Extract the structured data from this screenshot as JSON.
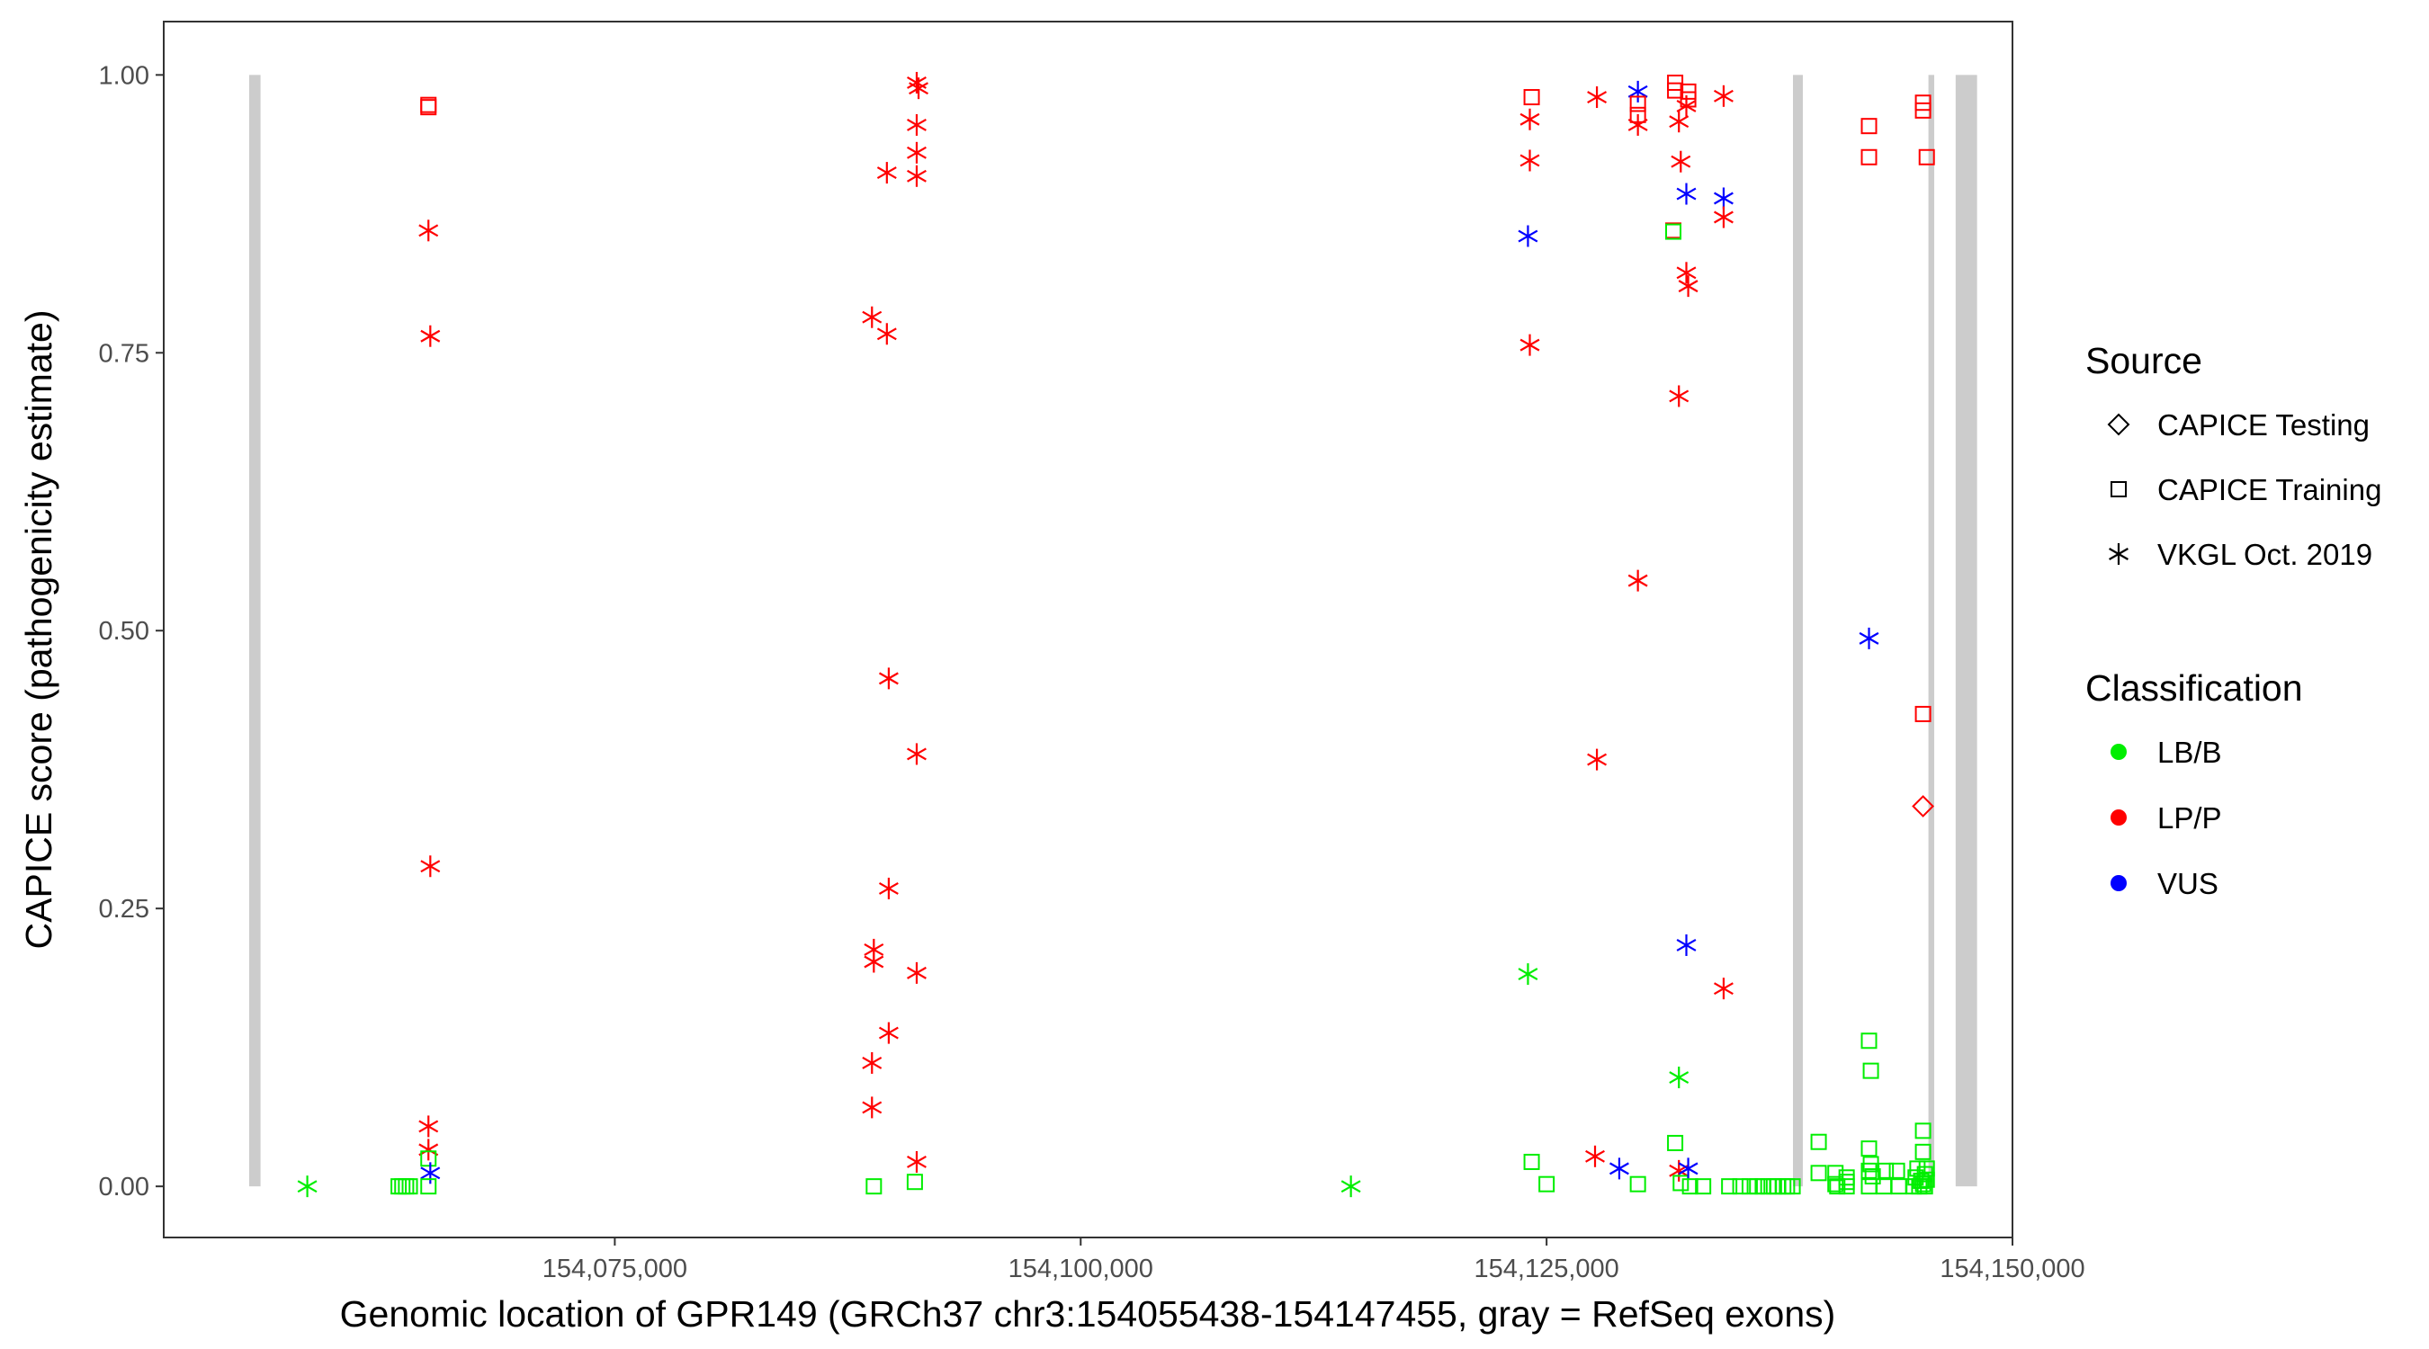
{
  "chart_data": {
    "type": "scatter",
    "xlabel": "Genomic location of GPR149 (GRCh37 chr3:154055438-154147455, gray = RefSeq exons)",
    "ylabel": "CAPICE score (pathogenicity estimate)",
    "xlim": [
      50796,
      149999
    ],
    "ylim": [
      -0.046,
      1.048
    ],
    "xticks": [
      75000,
      100000,
      125000,
      150000
    ],
    "xtick_labels": [
      "154,075,000",
      "154,100,000",
      "154,125,000",
      "154,150,000"
    ],
    "yticks": [
      0,
      0.25,
      0.5,
      0.75,
      1.0
    ],
    "ytick_labels": [
      "0.00",
      "0.25",
      "0.50",
      "0.75",
      "1.00"
    ],
    "x_offset": 154000000,
    "exons": [
      [
        55380,
        55990
      ],
      [
        138220,
        138750
      ],
      [
        145490,
        145800
      ],
      [
        146950,
        148100
      ]
    ],
    "colors": {
      "LB/B": "#00ee00",
      "LP/P": "#ff0000",
      "VUS": "#0000ff",
      "exon": "#cccccc"
    },
    "legend": {
      "source_title": "Source",
      "source_items": [
        {
          "label": "CAPICE Testing",
          "shape": "diamond"
        },
        {
          "label": "CAPICE Training",
          "shape": "square"
        },
        {
          "label": "VKGL Oct. 2019",
          "shape": "asterisk"
        }
      ],
      "class_title": "Classification",
      "class_items": [
        {
          "label": "LB/B",
          "color": "#00ee00"
        },
        {
          "label": "LP/P",
          "color": "#ff0000"
        },
        {
          "label": "VUS",
          "color": "#0000ff"
        }
      ]
    },
    "points": [
      [
        58500,
        0.0,
        "VKGL Oct. 2019",
        "LB/B"
      ],
      [
        63400,
        0.0,
        "CAPICE Training",
        "LB/B"
      ],
      [
        63600,
        0.0,
        "CAPICE Training",
        "LB/B"
      ],
      [
        63800,
        0.0,
        "CAPICE Training",
        "LB/B"
      ],
      [
        64000,
        0.0,
        "CAPICE Training",
        "LB/B"
      ],
      [
        65000,
        0.973,
        "CAPICE Training",
        "LP/P"
      ],
      [
        65000,
        0.971,
        "CAPICE Training",
        "LP/P"
      ],
      [
        65000,
        0.86,
        "VKGL Oct. 2019",
        "LP/P"
      ],
      [
        65100,
        0.765,
        "VKGL Oct. 2019",
        "LP/P"
      ],
      [
        65100,
        0.288,
        "VKGL Oct. 2019",
        "LP/P"
      ],
      [
        65000,
        0.054,
        "VKGL Oct. 2019",
        "LP/P"
      ],
      [
        65000,
        0.033,
        "VKGL Oct. 2019",
        "LP/P"
      ],
      [
        65000,
        0.025,
        "CAPICE Training",
        "LB/B"
      ],
      [
        65100,
        0.012,
        "VKGL Oct. 2019",
        "VUS"
      ],
      [
        65000,
        0.0,
        "CAPICE Training",
        "LB/B"
      ],
      [
        88900,
        0.0,
        "CAPICE Training",
        "LB/B"
      ],
      [
        91100,
        0.004,
        "CAPICE Training",
        "LB/B"
      ],
      [
        91200,
        0.993,
        "VKGL Oct. 2019",
        "LP/P"
      ],
      [
        91300,
        0.988,
        "VKGL Oct. 2019",
        "LP/P"
      ],
      [
        91200,
        0.955,
        "VKGL Oct. 2019",
        "LP/P"
      ],
      [
        91200,
        0.93,
        "VKGL Oct. 2019",
        "LP/P"
      ],
      [
        91200,
        0.909,
        "VKGL Oct. 2019",
        "LP/P"
      ],
      [
        89600,
        0.912,
        "VKGL Oct. 2019",
        "LP/P"
      ],
      [
        88800,
        0.782,
        "VKGL Oct. 2019",
        "LP/P"
      ],
      [
        89600,
        0.767,
        "VKGL Oct. 2019",
        "LP/P"
      ],
      [
        89700,
        0.457,
        "VKGL Oct. 2019",
        "LP/P"
      ],
      [
        91200,
        0.389,
        "VKGL Oct. 2019",
        "LP/P"
      ],
      [
        89700,
        0.268,
        "VKGL Oct. 2019",
        "LP/P"
      ],
      [
        88900,
        0.213,
        "VKGL Oct. 2019",
        "LP/P"
      ],
      [
        88900,
        0.202,
        "VKGL Oct. 2019",
        "LP/P"
      ],
      [
        91200,
        0.192,
        "VKGL Oct. 2019",
        "LP/P"
      ],
      [
        89700,
        0.138,
        "VKGL Oct. 2019",
        "LP/P"
      ],
      [
        88800,
        0.111,
        "VKGL Oct. 2019",
        "LP/P"
      ],
      [
        88800,
        0.071,
        "VKGL Oct. 2019",
        "LP/P"
      ],
      [
        91200,
        0.022,
        "VKGL Oct. 2019",
        "LP/P"
      ],
      [
        114500,
        0.0,
        "VKGL Oct. 2019",
        "LB/B"
      ],
      [
        124200,
        0.98,
        "CAPICE Training",
        "LP/P"
      ],
      [
        124100,
        0.96,
        "VKGL Oct. 2019",
        "LP/P"
      ],
      [
        124100,
        0.923,
        "VKGL Oct. 2019",
        "LP/P"
      ],
      [
        124000,
        0.855,
        "VKGL Oct. 2019",
        "VUS"
      ],
      [
        124100,
        0.757,
        "VKGL Oct. 2019",
        "LP/P"
      ],
      [
        124000,
        0.191,
        "VKGL Oct. 2019",
        "LB/B"
      ],
      [
        124200,
        0.022,
        "CAPICE Training",
        "LB/B"
      ],
      [
        125000,
        0.002,
        "CAPICE Training",
        "LB/B"
      ],
      [
        127700,
        0.98,
        "VKGL Oct. 2019",
        "LP/P"
      ],
      [
        127700,
        0.384,
        "VKGL Oct. 2019",
        "LP/P"
      ],
      [
        127600,
        0.027,
        "VKGL Oct. 2019",
        "LP/P"
      ],
      [
        128900,
        0.016,
        "VKGL Oct. 2019",
        "VUS"
      ],
      [
        129900,
        0.985,
        "VKGL Oct. 2019",
        "VUS"
      ],
      [
        129900,
        0.974,
        "CAPICE Training",
        "LP/P"
      ],
      [
        129900,
        0.964,
        "CAPICE Training",
        "LP/P"
      ],
      [
        129900,
        0.955,
        "VKGL Oct. 2019",
        "LP/P"
      ],
      [
        129900,
        0.545,
        "VKGL Oct. 2019",
        "LP/P"
      ],
      [
        129900,
        0.002,
        "CAPICE Training",
        "LB/B"
      ],
      [
        131900,
        0.993,
        "CAPICE Training",
        "LP/P"
      ],
      [
        131900,
        0.986,
        "CAPICE Training",
        "LP/P"
      ],
      [
        131800,
        0.86,
        "CAPICE Training",
        "LP/P"
      ],
      [
        131800,
        0.859,
        "CAPICE Training",
        "LB/B"
      ],
      [
        131900,
        0.039,
        "CAPICE Training",
        "LB/B"
      ],
      [
        132100,
        0.958,
        "VKGL Oct. 2019",
        "LP/P"
      ],
      [
        132200,
        0.922,
        "VKGL Oct. 2019",
        "LP/P"
      ],
      [
        132100,
        0.711,
        "VKGL Oct. 2019",
        "LP/P"
      ],
      [
        132100,
        0.098,
        "VKGL Oct. 2019",
        "LB/B"
      ],
      [
        132100,
        0.014,
        "VKGL Oct. 2019",
        "LP/P"
      ],
      [
        132200,
        0.003,
        "CAPICE Training",
        "LB/B"
      ],
      [
        132600,
        0.985,
        "CAPICE Training",
        "LP/P"
      ],
      [
        132600,
        0.978,
        "CAPICE Training",
        "LP/P"
      ],
      [
        132500,
        0.972,
        "VKGL Oct. 2019",
        "LP/P"
      ],
      [
        132500,
        0.893,
        "VKGL Oct. 2019",
        "VUS"
      ],
      [
        132500,
        0.822,
        "VKGL Oct. 2019",
        "LP/P"
      ],
      [
        132600,
        0.81,
        "VKGL Oct. 2019",
        "LP/P"
      ],
      [
        132500,
        0.217,
        "VKGL Oct. 2019",
        "VUS"
      ],
      [
        132600,
        0.016,
        "VKGL Oct. 2019",
        "VUS"
      ],
      [
        132700,
        0.0,
        "CAPICE Training",
        "LB/B"
      ],
      [
        133400,
        0.0,
        "CAPICE Training",
        "LB/B"
      ],
      [
        134500,
        0.981,
        "VKGL Oct. 2019",
        "LP/P"
      ],
      [
        134500,
        0.889,
        "VKGL Oct. 2019",
        "VUS"
      ],
      [
        134500,
        0.872,
        "VKGL Oct. 2019",
        "LP/P"
      ],
      [
        134500,
        0.178,
        "VKGL Oct. 2019",
        "LP/P"
      ],
      [
        134800,
        0.0,
        "CAPICE Training",
        "LB/B"
      ],
      [
        135400,
        0.0,
        "CAPICE Training",
        "LB/B"
      ],
      [
        135900,
        0.0,
        "CAPICE Training",
        "LB/B"
      ],
      [
        136300,
        0.0,
        "CAPICE Training",
        "LB/B"
      ],
      [
        136600,
        0.0,
        "CAPICE Training",
        "LB/B"
      ],
      [
        136900,
        0.0,
        "CAPICE Training",
        "LB/B"
      ],
      [
        137200,
        0.0,
        "CAPICE Training",
        "LB/B"
      ],
      [
        137400,
        0.0,
        "CAPICE Training",
        "LB/B"
      ],
      [
        137700,
        0.0,
        "CAPICE Training",
        "LB/B"
      ],
      [
        137900,
        0.0,
        "CAPICE Training",
        "LB/B"
      ],
      [
        138200,
        0.0,
        "CAPICE Training",
        "LB/B"
      ],
      [
        139600,
        0.04,
        "CAPICE Training",
        "LB/B"
      ],
      [
        139600,
        0.012,
        "CAPICE Training",
        "LB/B"
      ],
      [
        140500,
        0.012,
        "CAPICE Training",
        "LB/B"
      ],
      [
        140600,
        0.0,
        "CAPICE Training",
        "LB/B"
      ],
      [
        140500,
        0.002,
        "CAPICE Training",
        "LB/B"
      ],
      [
        141100,
        0.0,
        "CAPICE Training",
        "LB/B"
      ],
      [
        141100,
        0.004,
        "CAPICE Training",
        "LB/B"
      ],
      [
        141100,
        0.008,
        "CAPICE Training",
        "LB/B"
      ],
      [
        142300,
        0.954,
        "CAPICE Training",
        "LP/P"
      ],
      [
        142300,
        0.926,
        "CAPICE Training",
        "LP/P"
      ],
      [
        142300,
        0.493,
        "VKGL Oct. 2019",
        "VUS"
      ],
      [
        142300,
        0.131,
        "CAPICE Training",
        "LB/B"
      ],
      [
        142400,
        0.104,
        "CAPICE Training",
        "LB/B"
      ],
      [
        142300,
        0.034,
        "CAPICE Training",
        "LB/B"
      ],
      [
        142400,
        0.02,
        "CAPICE Training",
        "LB/B"
      ],
      [
        142300,
        0.014,
        "CAPICE Training",
        "LB/B"
      ],
      [
        142500,
        0.009,
        "CAPICE Training",
        "LB/B"
      ],
      [
        142300,
        0.0,
        "CAPICE Training",
        "LB/B"
      ],
      [
        143200,
        0.014,
        "CAPICE Training",
        "LB/B"
      ],
      [
        143100,
        0.0,
        "CAPICE Training",
        "LB/B"
      ],
      [
        143800,
        0.014,
        "CAPICE Training",
        "LB/B"
      ],
      [
        143900,
        0.0,
        "CAPICE Training",
        "LB/B"
      ],
      [
        144700,
        0.0,
        "CAPICE Training",
        "LB/B"
      ],
      [
        144800,
        0.008,
        "CAPICE Training",
        "LB/B"
      ],
      [
        145000,
        0.0,
        "CAPICE Training",
        "LB/B"
      ],
      [
        144900,
        0.016,
        "CAPICE Training",
        "LB/B"
      ],
      [
        145100,
        0.005,
        "CAPICE Training",
        "LB/B"
      ],
      [
        145200,
        0.975,
        "CAPICE Training",
        "LP/P"
      ],
      [
        145200,
        0.968,
        "CAPICE Training",
        "LP/P"
      ],
      [
        145400,
        0.926,
        "CAPICE Training",
        "LP/P"
      ],
      [
        145200,
        0.425,
        "CAPICE Training",
        "LP/P"
      ],
      [
        145200,
        0.342,
        "CAPICE Testing",
        "LP/P"
      ],
      [
        145200,
        0.05,
        "CAPICE Training",
        "LB/B"
      ],
      [
        145200,
        0.031,
        "CAPICE Training",
        "LB/B"
      ],
      [
        145400,
        0.016,
        "CAPICE Training",
        "LB/B"
      ],
      [
        145300,
        0.011,
        "CAPICE Training",
        "LB/B"
      ],
      [
        145400,
        0.006,
        "CAPICE Training",
        "LB/B"
      ],
      [
        145200,
        0.002,
        "CAPICE Training",
        "LB/B"
      ],
      [
        145300,
        0.0,
        "CAPICE Training",
        "LB/B"
      ]
    ]
  }
}
